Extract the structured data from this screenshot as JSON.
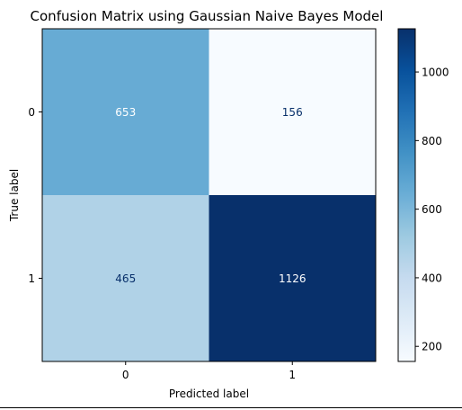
{
  "chart_data": {
    "type": "heatmap",
    "title": "Confusion Matrix using Gaussian Naive Bayes Model",
    "xlabel": "Predicted label",
    "ylabel": "True label",
    "x_categories": [
      "0",
      "1"
    ],
    "y_categories": [
      "0",
      "1"
    ],
    "values": [
      [
        653,
        156
      ],
      [
        465,
        1126
      ]
    ],
    "colormap": "Blues",
    "colorbar": {
      "range": [
        156,
        1126
      ],
      "ticks": [
        200,
        400,
        600,
        800,
        1000
      ],
      "tick_labels": [
        "200",
        "400",
        "600",
        "800",
        "1000"
      ]
    },
    "colors": {
      "light_text": "#ffffff",
      "dark_text": "#08306b"
    }
  }
}
